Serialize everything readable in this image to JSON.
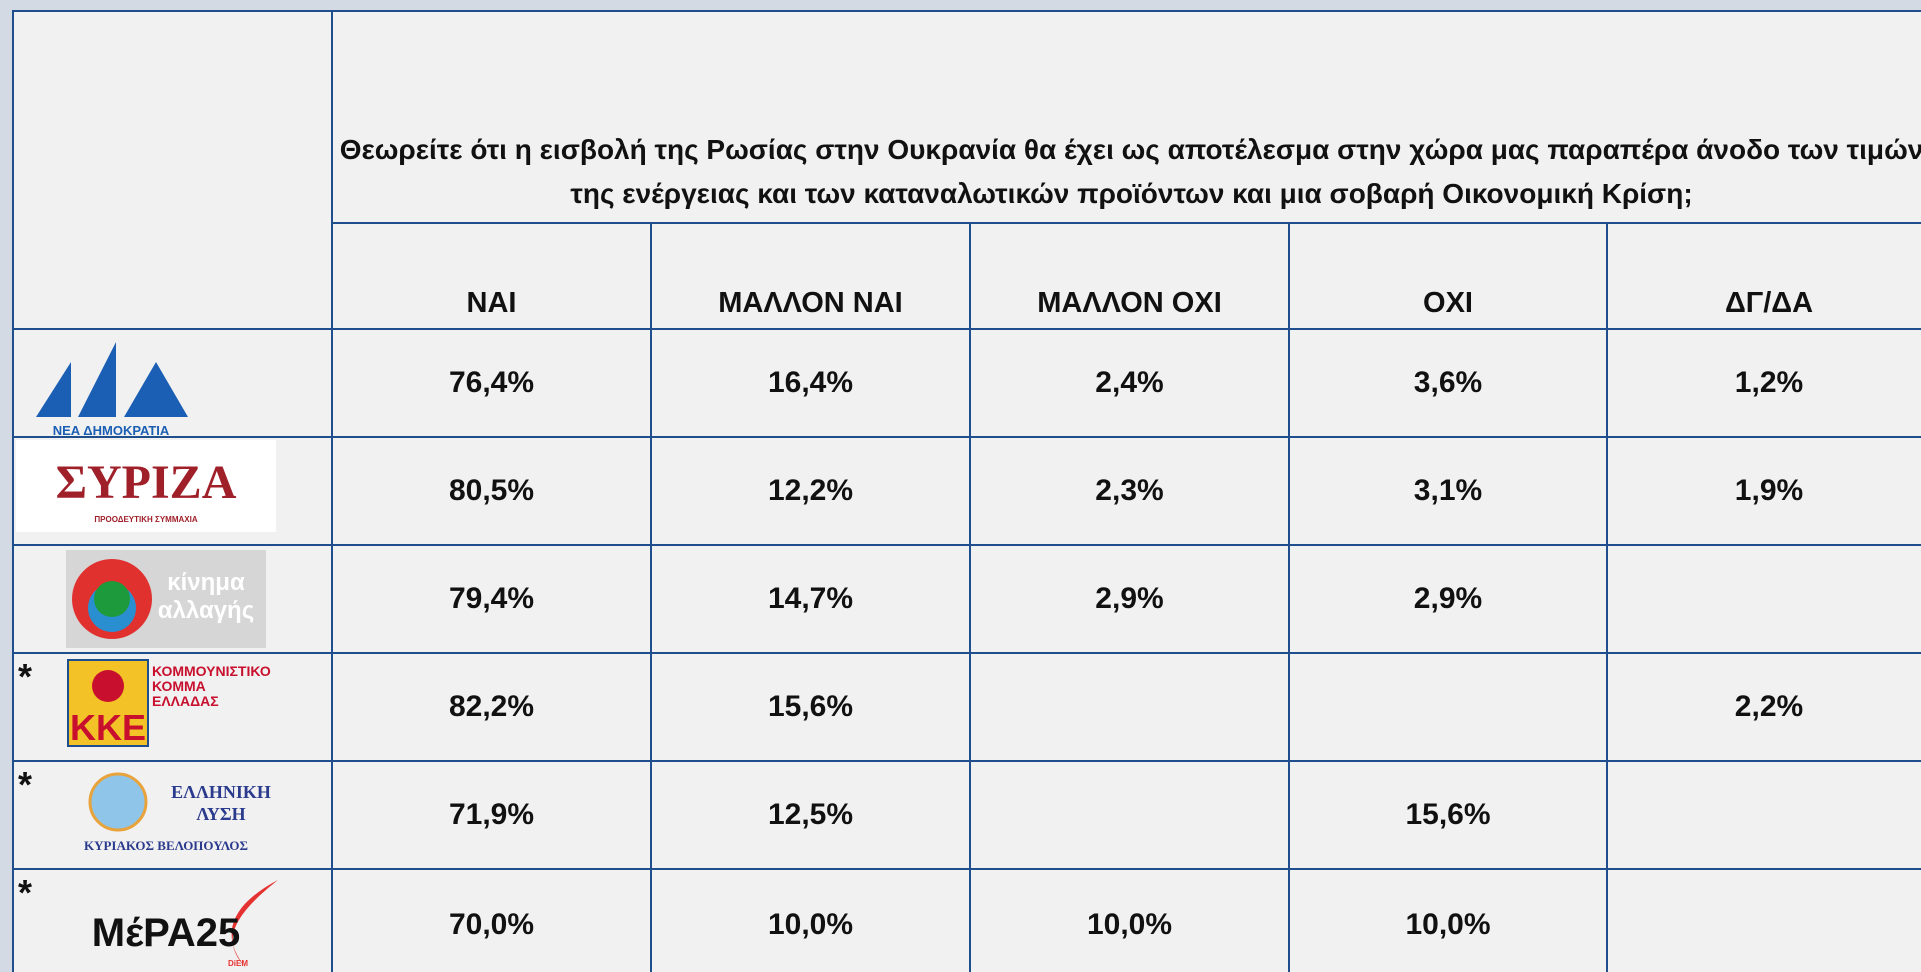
{
  "question": "Θεωρείτε ότι η εισβολή της Ρωσίας στην Ουκρανία θα έχει ως αποτέλεσμα στην χώρα μας παραπέρα άνοδο των τιμών  της ενέργειας και των καταναλωτικών προϊόντων και μια σοβαρή Οικονομική Κρίση;",
  "columns": [
    "ΝΑΙ",
    "ΜΑΛΛΟΝ ΝΑΙ",
    "ΜΑΛΛΟΝ ΟΧΙ",
    "ΟΧΙ",
    "ΔΓ/ΔΑ"
  ],
  "rows": [
    {
      "logo": [
        "ΝΕΑ ΔΗΜΟΚΡΑΤΙΑ"
      ],
      "cells": [
        "76,4%",
        "16,4%",
        "2,4%",
        "3,6%",
        "1,2%"
      ]
    },
    {
      "logo": [
        "ΣΥΡΙΖΑ",
        "ΠΡΟΟΔΕΥΤΙΚΗ ΣΥΜΜΑΧΙΑ"
      ],
      "cells": [
        "80,5%",
        "12,2%",
        "2,3%",
        "3,1%",
        "1,9%"
      ]
    },
    {
      "logo": [
        "κίνημα",
        "αλλαγής"
      ],
      "cells": [
        "79,4%",
        "14,7%",
        "2,9%",
        "2,9%",
        null
      ]
    },
    {
      "mark": "*",
      "logo": [
        "ΚΚΕ",
        "ΚΟΜΜΟΥΝΙΣΤΙΚΟ",
        "ΚΟΜΜΑ",
        "ΕΛΛΑΔΑΣ"
      ],
      "cells": [
        "82,2%",
        "15,6%",
        null,
        null,
        "2,2%"
      ]
    },
    {
      "mark": "*",
      "logo": [
        "ΕΛΛΗΝΙΚΗ",
        "ΛΥΣΗ",
        "ΚΥΡΙΑΚΟΣ ΒΕΛΟΠΟΥΛΟΣ"
      ],
      "cells": [
        "71,9%",
        "12,5%",
        null,
        "15,6%",
        null
      ]
    },
    {
      "mark": "*",
      "logo": [
        "ΜέΡΑ25",
        "DiEM"
      ],
      "cells": [
        "70,0%",
        "10,0%",
        "10,0%",
        "10,0%",
        null
      ]
    }
  ]
}
